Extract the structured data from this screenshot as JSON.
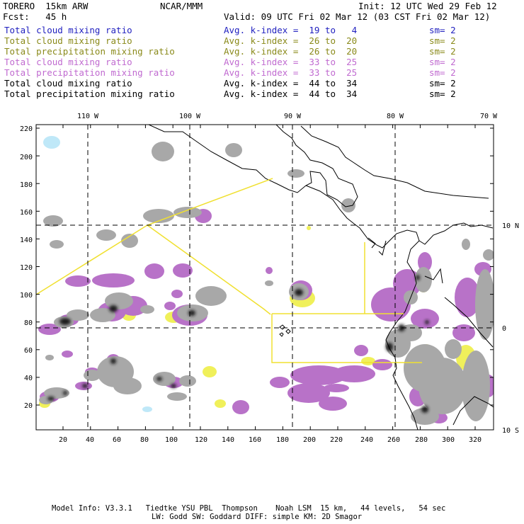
{
  "header": {
    "model": "TORERO  15km ARW",
    "org": "NCAR/MMM",
    "init": "Init: 12 UTC Wed 29 Feb 12",
    "fcst": "Fcst:   45 h",
    "valid": "Valid: 09 UTC Fri 02 Mar 12 (03 CST Fri 02 Mar 12)"
  },
  "legend": [
    {
      "name": "Total cloud mixing ratio",
      "kindex": "Avg. k-index =  19 to   4",
      "sm": "sm= 2",
      "color": "#1f1fbf"
    },
    {
      "name": "Total cloud mixing ratio",
      "kindex": "Avg. k-index =  26 to  20",
      "sm": "sm= 2",
      "color": "#8a8a1a"
    },
    {
      "name": "Total precipitation mixing ratio",
      "kindex": "Avg. k-index =  26 to  20",
      "sm": "sm= 2",
      "color": "#8a8a1a"
    },
    {
      "name": "Total cloud mixing ratio",
      "kindex": "Avg. k-index =  33 to  25",
      "sm": "sm= 2",
      "color": "#c06ad0"
    },
    {
      "name": "Total precipitation mixing ratio",
      "kindex": "Avg. k-index =  33 to  25",
      "sm": "sm= 2",
      "color": "#c06ad0"
    },
    {
      "name": "Total cloud mixing ratio",
      "kindex": "Avg. k-index =  44 to  34",
      "sm": "sm= 2",
      "color": "#000000"
    },
    {
      "name": "Total precipitation mixing ratio",
      "kindex": "Avg. k-index =  44 to  34",
      "sm": "sm= 2",
      "color": "#000000"
    }
  ],
  "map": {
    "top_lon_labels": [
      "110 W",
      "100 W",
      "90 W",
      "80 W",
      "70 W"
    ],
    "right_lat_labels": [
      "10 N",
      "0",
      "10 S"
    ],
    "left_ticks": [
      220,
      200,
      180,
      160,
      140,
      120,
      100,
      80,
      60,
      40,
      20
    ],
    "bottom_ticks": [
      20,
      40,
      60,
      80,
      100,
      120,
      140,
      160,
      180,
      200,
      220,
      240,
      260,
      280,
      300,
      320
    ]
  },
  "footer": {
    "line1": "Model Info: V3.3.1   Tiedtke YSU PBL  Thompson    Noah LSM  15 km,   44 levels,   54 sec",
    "line2": "LW: Godd SW: Goddard DIFF: simple KM: 2D Smagor"
  }
}
